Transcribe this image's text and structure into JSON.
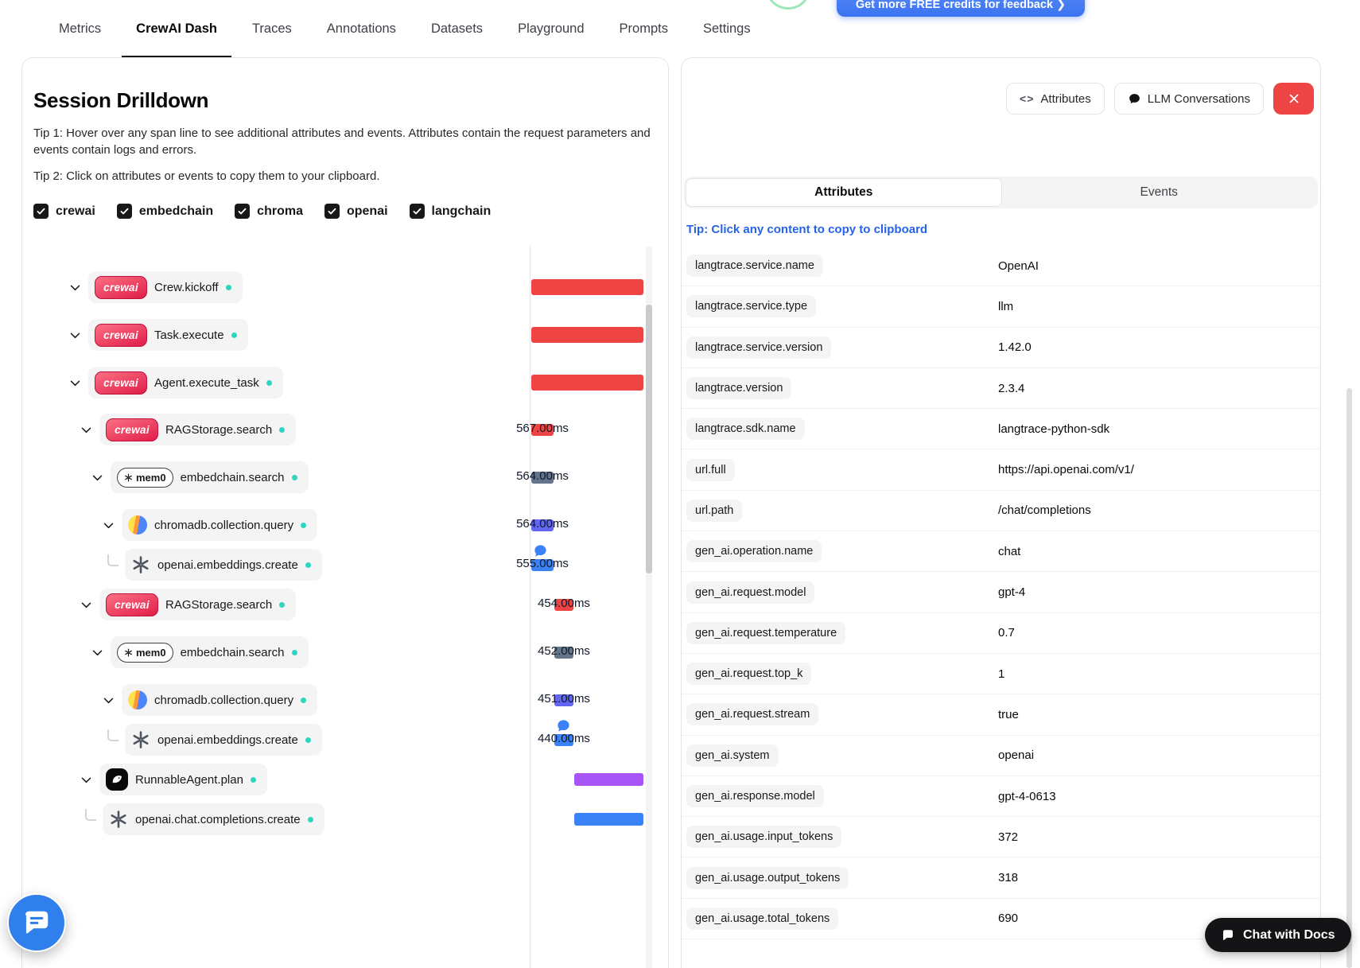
{
  "header": {
    "credits_button": "Get more FREE credits for feedback  ❯",
    "nav_tabs": [
      {
        "label": "Metrics",
        "active": false
      },
      {
        "label": "CrewAI Dash",
        "active": true
      },
      {
        "label": "Traces",
        "active": false
      },
      {
        "label": "Annotations",
        "active": false
      },
      {
        "label": "Datasets",
        "active": false
      },
      {
        "label": "Playground",
        "active": false
      },
      {
        "label": "Prompts",
        "active": false
      },
      {
        "label": "Settings",
        "active": false
      }
    ]
  },
  "left_panel": {
    "title": "Session Drilldown",
    "tip1": "Tip 1: Hover over any span line to see additional attributes and events. Attributes contain the request parameters and events contain logs and errors.",
    "tip2": "Tip 2: Click on attributes or events to copy them to your clipboard.",
    "filters": [
      {
        "label": "crewai",
        "checked": true
      },
      {
        "label": "embedchain",
        "checked": true
      },
      {
        "label": "chroma",
        "checked": true
      },
      {
        "label": "openai",
        "checked": true
      },
      {
        "label": "langchain",
        "checked": true
      }
    ],
    "spans": [
      {
        "label": "Crew.kickoff",
        "icon": "crewai",
        "level": 0,
        "leaf": false,
        "duration": null,
        "bubble": false,
        "bar": {
          "group": "full",
          "color": "#ef4444"
        }
      },
      {
        "label": "Task.execute",
        "icon": "crewai",
        "level": 0,
        "leaf": false,
        "duration": null,
        "bubble": false,
        "bar": {
          "group": "full",
          "color": "#ef4444"
        }
      },
      {
        "label": "Agent.execute_task",
        "icon": "crewai",
        "level": 0,
        "leaf": false,
        "duration": null,
        "bubble": false,
        "bar": {
          "group": "full",
          "color": "#ef4444"
        }
      },
      {
        "label": "RAGStorage.search",
        "icon": "crewai",
        "level": 1,
        "leaf": false,
        "duration": "567.00ms",
        "bubble": false,
        "bar": {
          "group": "g1",
          "color": "#ef4444"
        }
      },
      {
        "label": "embedchain.search",
        "icon": "mem0",
        "level": 2,
        "leaf": false,
        "duration": "564.00ms",
        "bubble": false,
        "bar": {
          "group": "g1",
          "color": "#64748b"
        }
      },
      {
        "label": "chromadb.collection.query",
        "icon": "chroma",
        "level": 3,
        "leaf": false,
        "duration": "564.00ms",
        "bubble": false,
        "bar": {
          "group": "g1",
          "color": "#6366f1"
        }
      },
      {
        "label": "openai.embeddings.create",
        "icon": "openai",
        "level": 3,
        "leaf": true,
        "duration": "555.00ms",
        "bubble": true,
        "bar": {
          "group": "g1",
          "color": "#3b82f6"
        }
      },
      {
        "label": "RAGStorage.search",
        "icon": "crewai",
        "level": 1,
        "leaf": false,
        "duration": "454.00ms",
        "bubble": false,
        "bar": {
          "group": "g2",
          "color": "#ef4444"
        }
      },
      {
        "label": "embedchain.search",
        "icon": "mem0",
        "level": 2,
        "leaf": false,
        "duration": "452.00ms",
        "bubble": false,
        "bar": {
          "group": "g2",
          "color": "#64748b"
        }
      },
      {
        "label": "chromadb.collection.query",
        "icon": "chroma",
        "level": 3,
        "leaf": false,
        "duration": "451.00ms",
        "bubble": false,
        "bar": {
          "group": "g2",
          "color": "#6366f1"
        }
      },
      {
        "label": "openai.embeddings.create",
        "icon": "openai",
        "level": 3,
        "leaf": true,
        "duration": "440.00ms",
        "bubble": true,
        "bar": {
          "group": "g2",
          "color": "#3b82f6"
        }
      },
      {
        "label": "RunnableAgent.plan",
        "icon": "langchain",
        "level": 1,
        "leaf": false,
        "duration": null,
        "bubble": false,
        "bar": {
          "group": "g3",
          "color": "#a855f7"
        }
      },
      {
        "label": "openai.chat.completions.create",
        "icon": "openai",
        "level": 1,
        "leaf": true,
        "duration": null,
        "bubble": false,
        "bar": {
          "group": "g3",
          "color": "#3b82f6"
        }
      }
    ]
  },
  "right_panel": {
    "toolbar": {
      "attributes_button": "Attributes",
      "llm_conversations_button": "LLM Conversations"
    },
    "tabs": [
      {
        "label": "Attributes",
        "active": true
      },
      {
        "label": "Events",
        "active": false
      }
    ],
    "tip": "Tip: Click any content to copy to clipboard",
    "attributes": [
      {
        "key": "langtrace.service.name",
        "value": "OpenAI"
      },
      {
        "key": "langtrace.service.type",
        "value": "llm"
      },
      {
        "key": "langtrace.service.version",
        "value": "1.42.0"
      },
      {
        "key": "langtrace.version",
        "value": "2.3.4"
      },
      {
        "key": "langtrace.sdk.name",
        "value": "langtrace-python-sdk"
      },
      {
        "key": "url.full",
        "value": "https://api.openai.com/v1/"
      },
      {
        "key": "url.path",
        "value": "/chat/completions"
      },
      {
        "key": "gen_ai.operation.name",
        "value": "chat"
      },
      {
        "key": "gen_ai.request.model",
        "value": "gpt-4"
      },
      {
        "key": "gen_ai.request.temperature",
        "value": "0.7"
      },
      {
        "key": "gen_ai.request.top_k",
        "value": "1"
      },
      {
        "key": "gen_ai.request.stream",
        "value": "true"
      },
      {
        "key": "gen_ai.system",
        "value": "openai"
      },
      {
        "key": "gen_ai.response.model",
        "value": "gpt-4-0613"
      },
      {
        "key": "gen_ai.usage.input_tokens",
        "value": "372"
      },
      {
        "key": "gen_ai.usage.output_tokens",
        "value": "318"
      },
      {
        "key": "gen_ai.usage.total_tokens",
        "value": "690"
      }
    ]
  },
  "footer": {
    "chat_with_docs": "Chat with Docs"
  }
}
